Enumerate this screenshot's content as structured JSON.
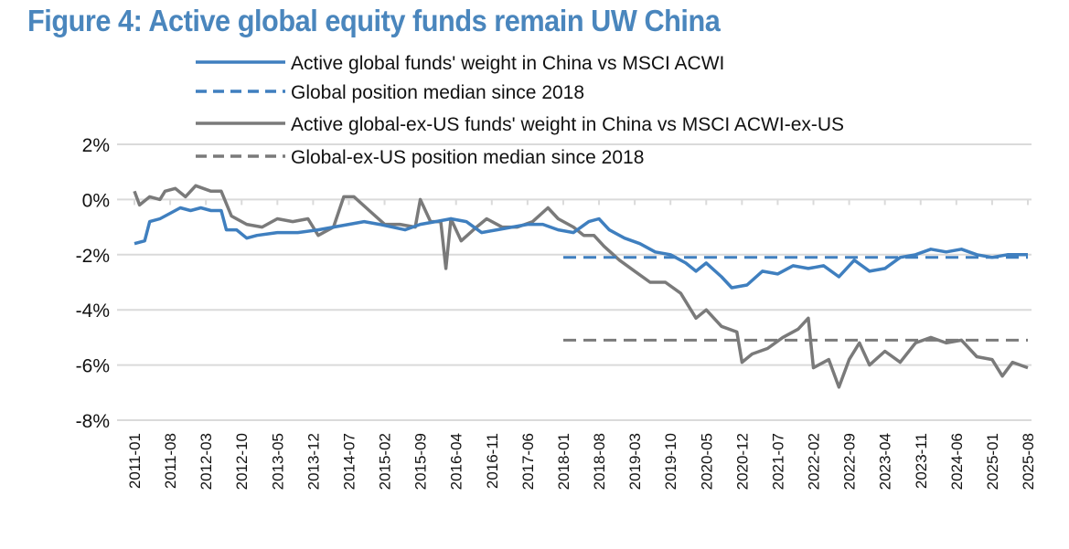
{
  "chart_data": {
    "type": "line",
    "title": "Figure 4: Active global equity funds remain UW China",
    "xlabel": "",
    "ylabel": "",
    "ylim": [
      -8,
      2
    ],
    "y_ticks": [
      "2%",
      "0%",
      "-2%",
      "-4%",
      "-6%",
      "-8%"
    ],
    "y_tick_values": [
      2,
      0,
      -2,
      -4,
      -6,
      -8
    ],
    "x_range": [
      "2011-01",
      "2025-08"
    ],
    "x_ticks": [
      "2011-01",
      "2011-08",
      "2012-03",
      "2012-10",
      "2013-05",
      "2013-12",
      "2014-07",
      "2015-02",
      "2015-09",
      "2016-04",
      "2016-11",
      "2017-06",
      "2018-01",
      "2018-08",
      "2019-03",
      "2019-10",
      "2020-05",
      "2020-12",
      "2021-07",
      "2022-02",
      "2022-09",
      "2023-04",
      "2023-11",
      "2024-06",
      "2025-01",
      "2025-08"
    ],
    "grid": "horizontal",
    "legend_position": "top",
    "series": [
      {
        "name": "Active global funds' weight in China vs MSCI ACWI",
        "style": "solid",
        "color": "#3f7fbf",
        "points": [
          [
            "2011-01",
            -1.6
          ],
          [
            "2011-03",
            -1.5
          ],
          [
            "2011-04",
            -0.8
          ],
          [
            "2011-06",
            -0.7
          ],
          [
            "2011-08",
            -0.5
          ],
          [
            "2011-10",
            -0.3
          ],
          [
            "2011-12",
            -0.4
          ],
          [
            "2012-02",
            -0.3
          ],
          [
            "2012-04",
            -0.4
          ],
          [
            "2012-06",
            -0.4
          ],
          [
            "2012-07",
            -1.1
          ],
          [
            "2012-09",
            -1.1
          ],
          [
            "2012-11",
            -1.4
          ],
          [
            "2013-01",
            -1.3
          ],
          [
            "2013-05",
            -1.2
          ],
          [
            "2013-09",
            -1.2
          ],
          [
            "2014-01",
            -1.1
          ],
          [
            "2014-04",
            -1.0
          ],
          [
            "2014-07",
            -0.9
          ],
          [
            "2014-10",
            -0.8
          ],
          [
            "2015-01",
            -0.9
          ],
          [
            "2015-06",
            -1.1
          ],
          [
            "2015-09",
            -0.9
          ],
          [
            "2015-12",
            -0.8
          ],
          [
            "2016-03",
            -0.7
          ],
          [
            "2016-06",
            -0.8
          ],
          [
            "2016-09",
            -1.2
          ],
          [
            "2016-12",
            -1.1
          ],
          [
            "2017-03",
            -1.0
          ],
          [
            "2017-06",
            -0.9
          ],
          [
            "2017-09",
            -0.9
          ],
          [
            "2017-12",
            -1.1
          ],
          [
            "2018-03",
            -1.2
          ],
          [
            "2018-06",
            -0.8
          ],
          [
            "2018-08",
            -0.7
          ],
          [
            "2018-10",
            -1.1
          ],
          [
            "2019-01",
            -1.4
          ],
          [
            "2019-04",
            -1.6
          ],
          [
            "2019-07",
            -1.9
          ],
          [
            "2019-10",
            -2.0
          ],
          [
            "2020-01",
            -2.3
          ],
          [
            "2020-03",
            -2.6
          ],
          [
            "2020-05",
            -2.3
          ],
          [
            "2020-08",
            -2.8
          ],
          [
            "2020-10",
            -3.2
          ],
          [
            "2021-01",
            -3.1
          ],
          [
            "2021-04",
            -2.6
          ],
          [
            "2021-07",
            -2.7
          ],
          [
            "2021-10",
            -2.4
          ],
          [
            "2022-01",
            -2.5
          ],
          [
            "2022-04",
            -2.4
          ],
          [
            "2022-07",
            -2.8
          ],
          [
            "2022-10",
            -2.2
          ],
          [
            "2023-01",
            -2.6
          ],
          [
            "2023-04",
            -2.5
          ],
          [
            "2023-07",
            -2.1
          ],
          [
            "2023-10",
            -2.0
          ],
          [
            "2024-01",
            -1.8
          ],
          [
            "2024-04",
            -1.9
          ],
          [
            "2024-07",
            -1.8
          ],
          [
            "2024-10",
            -2.0
          ],
          [
            "2025-01",
            -2.1
          ],
          [
            "2025-04",
            -2.0
          ],
          [
            "2025-08",
            -2.0
          ]
        ]
      },
      {
        "name": "Global position median since 2018",
        "style": "dashed",
        "color": "#3f7fbf",
        "points": [
          [
            "2018-01",
            -2.1
          ],
          [
            "2025-08",
            -2.1
          ]
        ]
      },
      {
        "name": "Active global-ex-US funds' weight in China vs MSCI ACWI-ex-US",
        "style": "solid",
        "color": "#7a7a7a",
        "points": [
          [
            "2011-01",
            0.3
          ],
          [
            "2011-02",
            -0.2
          ],
          [
            "2011-04",
            0.1
          ],
          [
            "2011-06",
            0.0
          ],
          [
            "2011-07",
            0.3
          ],
          [
            "2011-09",
            0.4
          ],
          [
            "2011-11",
            0.1
          ],
          [
            "2012-01",
            0.5
          ],
          [
            "2012-04",
            0.3
          ],
          [
            "2012-06",
            0.3
          ],
          [
            "2012-08",
            -0.6
          ],
          [
            "2012-11",
            -0.9
          ],
          [
            "2013-02",
            -1.0
          ],
          [
            "2013-05",
            -0.7
          ],
          [
            "2013-08",
            -0.8
          ],
          [
            "2013-11",
            -0.7
          ],
          [
            "2014-01",
            -1.3
          ],
          [
            "2014-04",
            -1.0
          ],
          [
            "2014-06",
            0.1
          ],
          [
            "2014-08",
            0.1
          ],
          [
            "2014-11",
            -0.4
          ],
          [
            "2015-02",
            -0.9
          ],
          [
            "2015-05",
            -0.9
          ],
          [
            "2015-08",
            -1.0
          ],
          [
            "2015-09",
            0.0
          ],
          [
            "2015-11",
            -0.8
          ],
          [
            "2016-01",
            -0.8
          ],
          [
            "2016-02",
            -2.5
          ],
          [
            "2016-03",
            -0.7
          ],
          [
            "2016-05",
            -1.5
          ],
          [
            "2016-08",
            -1.0
          ],
          [
            "2016-10",
            -0.7
          ],
          [
            "2017-01",
            -1.0
          ],
          [
            "2017-04",
            -1.0
          ],
          [
            "2017-07",
            -0.8
          ],
          [
            "2017-10",
            -0.3
          ],
          [
            "2017-12",
            -0.7
          ],
          [
            "2018-03",
            -1.0
          ],
          [
            "2018-05",
            -1.3
          ],
          [
            "2018-07",
            -1.3
          ],
          [
            "2018-09",
            -1.7
          ],
          [
            "2018-12",
            -2.2
          ],
          [
            "2019-03",
            -2.6
          ],
          [
            "2019-06",
            -3.0
          ],
          [
            "2019-09",
            -3.0
          ],
          [
            "2019-12",
            -3.4
          ],
          [
            "2020-03",
            -4.3
          ],
          [
            "2020-05",
            -4.0
          ],
          [
            "2020-08",
            -4.6
          ],
          [
            "2020-11",
            -4.8
          ],
          [
            "2020-12",
            -5.9
          ],
          [
            "2021-02",
            -5.6
          ],
          [
            "2021-05",
            -5.4
          ],
          [
            "2021-08",
            -5.0
          ],
          [
            "2021-11",
            -4.7
          ],
          [
            "2022-01",
            -4.3
          ],
          [
            "2022-02",
            -6.1
          ],
          [
            "2022-05",
            -5.8
          ],
          [
            "2022-07",
            -6.8
          ],
          [
            "2022-09",
            -5.8
          ],
          [
            "2022-11",
            -5.2
          ],
          [
            "2023-01",
            -6.0
          ],
          [
            "2023-04",
            -5.5
          ],
          [
            "2023-07",
            -5.9
          ],
          [
            "2023-10",
            -5.2
          ],
          [
            "2024-01",
            -5.0
          ],
          [
            "2024-04",
            -5.2
          ],
          [
            "2024-07",
            -5.1
          ],
          [
            "2024-10",
            -5.7
          ],
          [
            "2025-01",
            -5.8
          ],
          [
            "2025-03",
            -6.4
          ],
          [
            "2025-05",
            -5.9
          ],
          [
            "2025-08",
            -6.1
          ]
        ]
      },
      {
        "name": "Global-ex-US position median since 2018",
        "style": "dashed",
        "color": "#7a7a7a",
        "points": [
          [
            "2018-01",
            -5.1
          ],
          [
            "2025-08",
            -5.1
          ]
        ]
      }
    ]
  }
}
